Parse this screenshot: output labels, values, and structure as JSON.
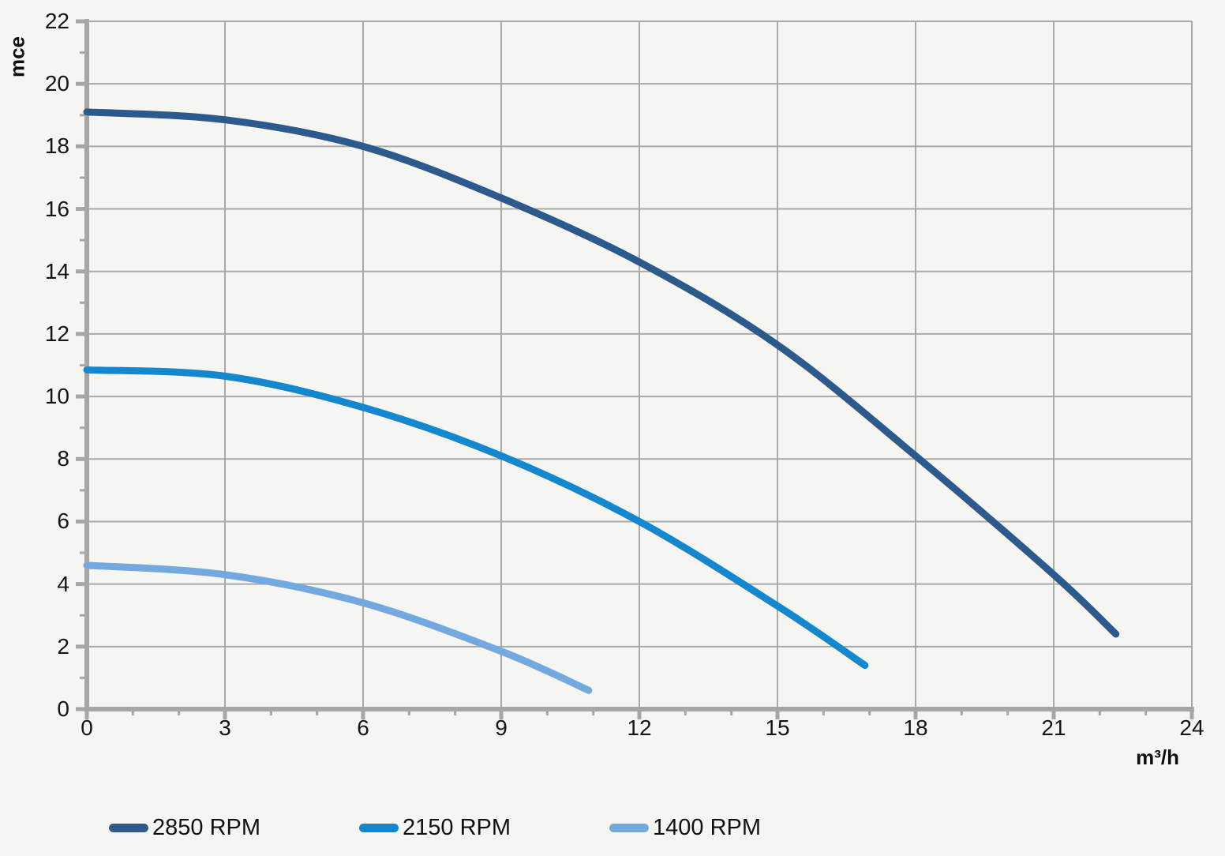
{
  "axes": {
    "y": {
      "label": "mce",
      "min": 0,
      "max": 22,
      "major_step": 2,
      "minor_step": 1,
      "tick_labels": [
        "0",
        "2",
        "4",
        "6",
        "8",
        "10",
        "12",
        "14",
        "16",
        "18",
        "20",
        "22"
      ]
    },
    "x": {
      "label": "m³/h",
      "min": 0,
      "max": 24,
      "major_step": 3,
      "minor_step": 1,
      "tick_labels": [
        "0",
        "3",
        "6",
        "9",
        "12",
        "15",
        "18",
        "21",
        "24"
      ]
    }
  },
  "colors": {
    "background": "#f5f5f2",
    "grid": "#a9a9a6",
    "axis": "#a6a6a3",
    "text": "#141414",
    "series_2850": "#2d5a8c",
    "series_2150": "#1487ce",
    "series_1400": "#74a9df"
  },
  "legend": {
    "items": [
      {
        "label": "2850 RPM",
        "color": "#2d5a8c"
      },
      {
        "label": "2150 RPM",
        "color": "#1487ce"
      },
      {
        "label": "1400 RPM",
        "color": "#74a9df"
      }
    ]
  },
  "chart_data": {
    "type": "line",
    "title": "",
    "xlabel": "m³/h",
    "ylabel": "mce",
    "xlim": [
      0,
      24
    ],
    "ylim": [
      0,
      22
    ],
    "x_major_ticks": [
      0,
      3,
      6,
      9,
      12,
      15,
      18,
      21,
      24
    ],
    "y_major_ticks": [
      0,
      2,
      4,
      6,
      8,
      10,
      12,
      14,
      16,
      18,
      20,
      22
    ],
    "grid": true,
    "legend_position": "bottom",
    "series": [
      {
        "name": "2850 RPM",
        "color": "#2d5a8c",
        "points": [
          [
            0,
            19.1
          ],
          [
            3,
            18.85
          ],
          [
            6,
            18.0
          ],
          [
            9,
            16.35
          ],
          [
            12,
            14.3
          ],
          [
            15,
            11.65
          ],
          [
            18,
            8.1
          ],
          [
            21,
            4.3
          ],
          [
            22.35,
            2.4
          ]
        ]
      },
      {
        "name": "2150 RPM",
        "color": "#1487ce",
        "points": [
          [
            0,
            10.85
          ],
          [
            3,
            10.65
          ],
          [
            6,
            9.65
          ],
          [
            9,
            8.1
          ],
          [
            12,
            6.0
          ],
          [
            15,
            3.3
          ],
          [
            16.9,
            1.4
          ]
        ]
      },
      {
        "name": "1400 RPM",
        "color": "#74a9df",
        "points": [
          [
            0,
            4.6
          ],
          [
            3,
            4.3
          ],
          [
            6,
            3.4
          ],
          [
            9,
            1.85
          ],
          [
            10.9,
            0.6
          ]
        ]
      }
    ]
  }
}
